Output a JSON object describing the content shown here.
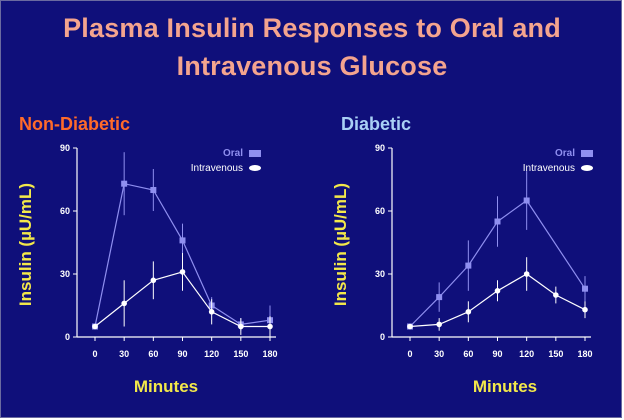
{
  "title_lines": [
    "Plasma Insulin Responses to Oral and",
    "Intravenous Glucose"
  ],
  "colors": {
    "background": "#0f0f7a",
    "title": "#f4a48e",
    "non_diabetic_title": "#ff6a2a",
    "diabetic_title": "#a9d0f5",
    "axis_label": "#f3e84a",
    "oral_series": "#8f8ff0",
    "iv_series": "#ffffff",
    "axis": "#ffffff"
  },
  "chart_data": [
    {
      "type": "line",
      "title": "Non-Diabetic",
      "xlabel": "Minutes",
      "ylabel": "Insulin (µU/mL)",
      "x": [
        0,
        30,
        60,
        90,
        120,
        150,
        180
      ],
      "xticks": [
        "0",
        "30",
        "60",
        "90",
        "120",
        "150",
        "180"
      ],
      "yticks": [
        "0",
        "30",
        "60",
        "90"
      ],
      "ylim": [
        0,
        90
      ],
      "legend_position": "top-right",
      "series": [
        {
          "name": "Oral",
          "marker": "square",
          "values": [
            5,
            73,
            70,
            46,
            15,
            6,
            8
          ],
          "error": [
            1,
            15,
            10,
            8,
            4,
            3,
            7
          ]
        },
        {
          "name": "Intravenous",
          "marker": "circle",
          "values": [
            5,
            16,
            27,
            31,
            12,
            5,
            5
          ],
          "error": [
            1,
            11,
            9,
            9,
            6,
            4,
            5
          ]
        }
      ]
    },
    {
      "type": "line",
      "title": "Diabetic",
      "xlabel": "Minutes",
      "ylabel": "Insulin (µU/mL)",
      "x": [
        0,
        30,
        60,
        90,
        120,
        150,
        180
      ],
      "xticks": [
        "0",
        "30",
        "60",
        "90",
        "120",
        "150",
        "180"
      ],
      "yticks": [
        "0",
        "30",
        "60",
        "90"
      ],
      "ylim": [
        0,
        90
      ],
      "legend_position": "top-right",
      "series": [
        {
          "name": "Oral",
          "marker": "square",
          "values": [
            5,
            19,
            34,
            55,
            65,
            null,
            23
          ],
          "error": [
            1,
            7,
            12,
            12,
            14,
            0,
            6
          ]
        },
        {
          "name": "Intravenous",
          "marker": "circle",
          "values": [
            5,
            6,
            12,
            22,
            30,
            20,
            13
          ],
          "error": [
            1,
            3,
            5,
            5,
            8,
            4,
            4
          ]
        }
      ]
    }
  ]
}
